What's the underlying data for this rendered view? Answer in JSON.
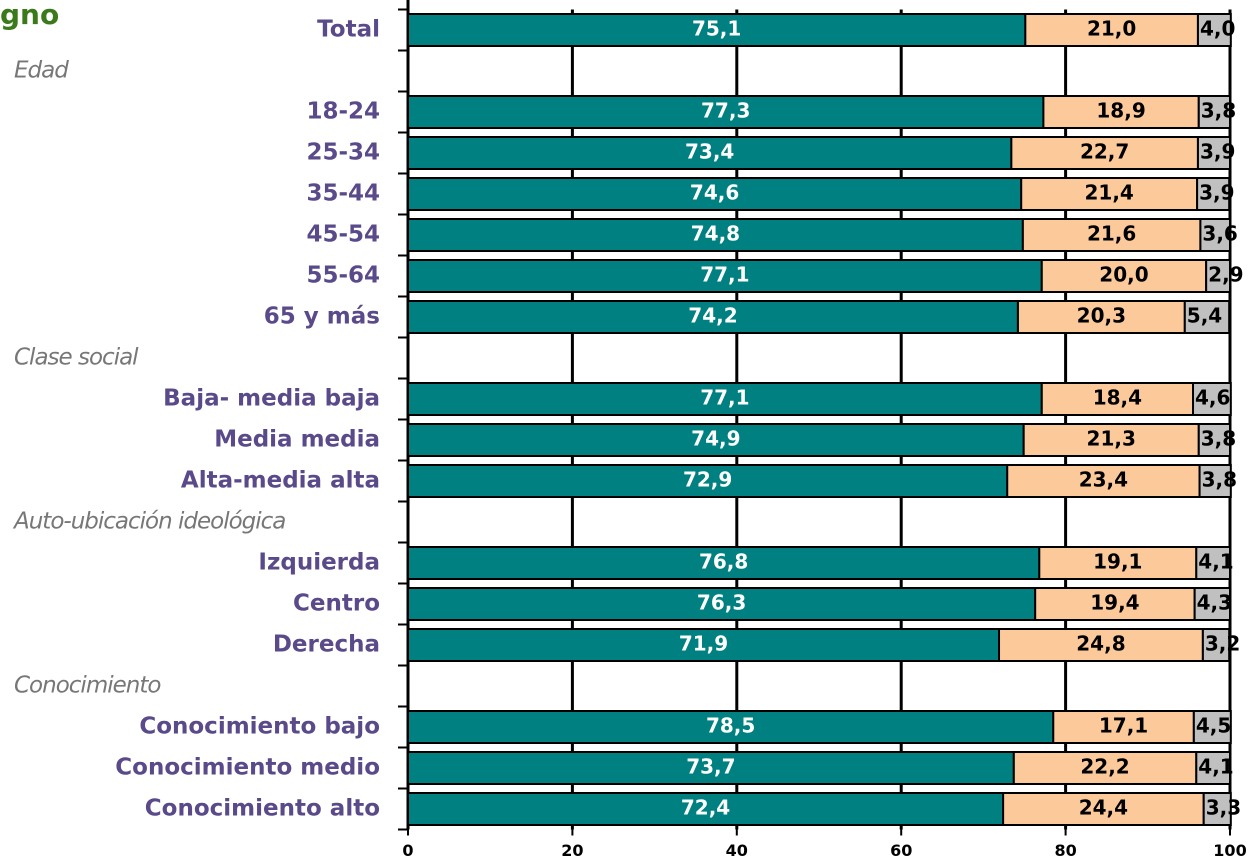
{
  "chart_data": {
    "type": "stacked-barh",
    "title": "gno",
    "categories": [
      "Total",
      "Edad",
      "18-24",
      "25-34",
      "35-44",
      "45-54",
      "55-64",
      "65 y más",
      "Clase social",
      "Baja- media baja",
      "Media media",
      "Alta-media alta",
      "Auto-ubicación ideológica",
      "Izquierda",
      "Centro",
      "Derecha",
      "Conocimiento",
      "Conocimiento bajo",
      "Conocimiento medio",
      "Conocimiento alto"
    ],
    "series": [
      {
        "color": "#008080",
        "values": [
          75.1,
          null,
          77.3,
          73.4,
          74.6,
          74.8,
          77.1,
          74.2,
          null,
          77.1,
          74.9,
          72.9,
          null,
          76.8,
          76.3,
          71.9,
          null,
          78.5,
          73.7,
          72.4
        ],
        "value_labels": [
          "75,1",
          null,
          "77,3",
          "73,4",
          "74,6",
          "74,8",
          "77,1",
          "74,2",
          null,
          "77,1",
          "74,9",
          "72,9",
          null,
          "76,8",
          "76,3",
          "71,9",
          null,
          "78,5",
          "73,7",
          "72,4"
        ]
      },
      {
        "color": "#fcc99b",
        "values": [
          21.0,
          null,
          18.9,
          22.7,
          21.4,
          21.6,
          20.0,
          20.3,
          null,
          18.4,
          21.3,
          23.4,
          null,
          19.1,
          19.4,
          24.8,
          null,
          17.1,
          22.2,
          24.4
        ],
        "value_labels": [
          "21,0",
          null,
          "18,9",
          "22,7",
          "21,4",
          "21,6",
          "20,0",
          "20,3",
          null,
          "18,4",
          "21,3",
          "23,4",
          null,
          "19,1",
          "19,4",
          "24,8",
          null,
          "17,1",
          "22,2",
          "24,4"
        ]
      },
      {
        "color": "#c0c0c0",
        "values": [
          4.0,
          null,
          3.8,
          3.9,
          3.9,
          3.6,
          2.9,
          5.4,
          null,
          4.6,
          3.8,
          3.8,
          null,
          4.1,
          4.3,
          3.2,
          null,
          4.5,
          4.1,
          3.3
        ],
        "value_labels": [
          "4,0",
          null,
          "3,8",
          "3,9",
          "3,9",
          "3,6",
          "2,9",
          "5,4",
          null,
          "4,6",
          "3,8",
          "3,8",
          null,
          "4,1",
          "4,3",
          "3,2",
          null,
          "4,5",
          "4,1",
          "3,3"
        ]
      }
    ],
    "xlim": [
      0,
      100
    ],
    "xticks": [
      0,
      20,
      40,
      60,
      80,
      100
    ],
    "grid": true
  }
}
